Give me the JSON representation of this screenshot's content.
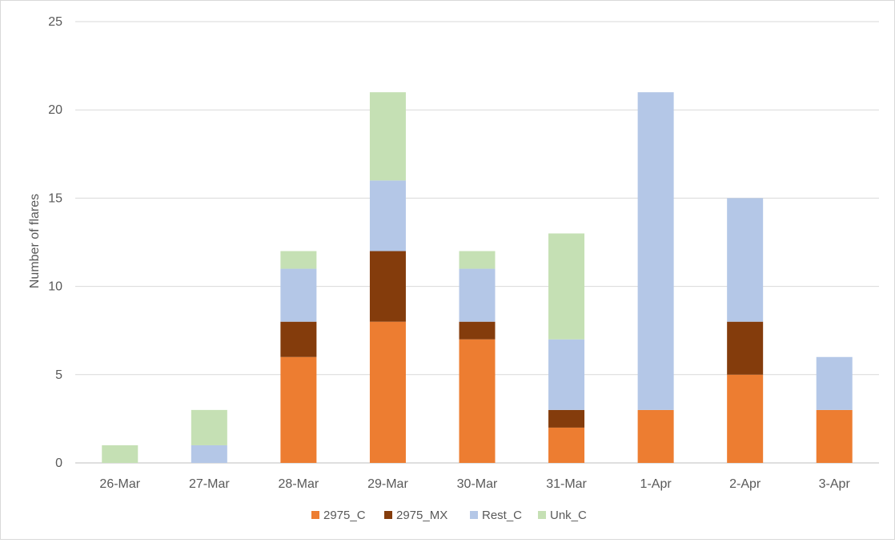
{
  "chart_data": {
    "type": "bar",
    "stacked": true,
    "title": "",
    "xlabel": "",
    "ylabel": "Number of flares",
    "ylim": [
      0,
      25
    ],
    "yticks": [
      0,
      5,
      10,
      15,
      20,
      25
    ],
    "grid": true,
    "legend_position": "bottom",
    "categories": [
      "26-Mar",
      "27-Mar",
      "28-Mar",
      "29-Mar",
      "30-Mar",
      "31-Mar",
      "1-Apr",
      "2-Apr",
      "3-Apr"
    ],
    "series": [
      {
        "name": "2975_C",
        "color": "#ED7D31",
        "values": [
          0,
          0,
          6,
          8,
          7,
          2,
          3,
          5,
          3
        ]
      },
      {
        "name": "2975_MX",
        "color": "#843C0C",
        "values": [
          0,
          0,
          2,
          4,
          1,
          1,
          0,
          3,
          0
        ]
      },
      {
        "name": "Rest_C",
        "color": "#B4C7E7",
        "values": [
          0,
          1,
          3,
          4,
          3,
          4,
          18,
          7,
          3
        ]
      },
      {
        "name": "Unk_C",
        "color": "#C5E0B4",
        "values": [
          1,
          2,
          1,
          5,
          1,
          6,
          0,
          0,
          0
        ]
      }
    ]
  }
}
